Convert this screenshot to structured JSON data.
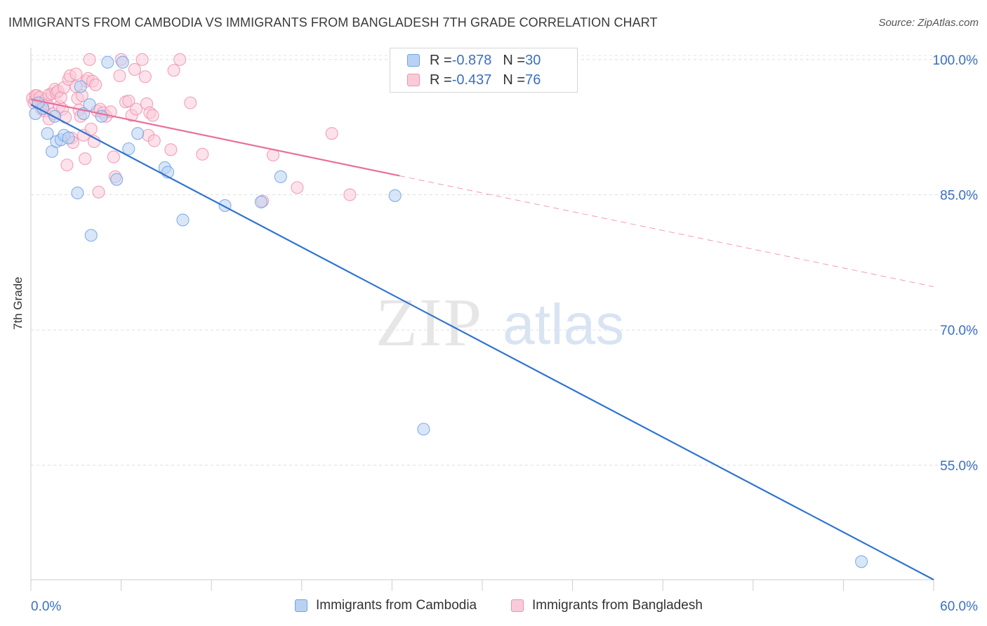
{
  "header": {
    "title": "IMMIGRANTS FROM CAMBODIA VS IMMIGRANTS FROM BANGLADESH 7TH GRADE CORRELATION CHART",
    "source": "Source: ZipAtlas.com"
  },
  "watermark": {
    "zip": "ZIP",
    "atlas": "atlas"
  },
  "legend": {
    "cambodia": {
      "r_label": "R = ",
      "r_value": "-0.878",
      "n_label": "N = ",
      "n_value": "30"
    },
    "bangladesh": {
      "r_label": "R = ",
      "r_value": "-0.437",
      "n_label": "N = ",
      "n_value": "76"
    }
  },
  "chart_data": {
    "type": "scatter",
    "title": "IMMIGRANTS FROM CAMBODIA VS IMMIGRANTS FROM BANGLADESH 7TH GRADE CORRELATION CHART",
    "xlabel": "",
    "ylabel": "7th Grade",
    "xlim": [
      0,
      60
    ],
    "ylim": [
      42.3,
      101
    ],
    "x_tick_labels": [
      "0.0%",
      "60.0%"
    ],
    "y_ticks": [
      55,
      70,
      85,
      100
    ],
    "y_tick_labels": [
      "55.0%",
      "70.0%",
      "85.0%",
      "100.0%"
    ],
    "grid": true,
    "legend_position": "top-center",
    "series": [
      {
        "name": "Immigrants from Cambodia",
        "color": "#6fa3e6",
        "fill": "#b9d2f3",
        "R": -0.878,
        "N": 30,
        "trend": {
          "x0": 0,
          "y0": 95.0,
          "x1": 60,
          "y1": 42.3,
          "dashed_from": null
        },
        "points": [
          [
            0.3,
            94.0
          ],
          [
            0.8,
            94.6
          ],
          [
            1.1,
            91.8
          ],
          [
            1.4,
            89.8
          ],
          [
            1.6,
            93.7
          ],
          [
            1.7,
            90.9
          ],
          [
            2.0,
            91.1
          ],
          [
            2.2,
            91.6
          ],
          [
            2.5,
            91.3
          ],
          [
            3.1,
            85.2
          ],
          [
            3.3,
            97.0
          ],
          [
            3.5,
            94.0
          ],
          [
            3.9,
            95.0
          ],
          [
            4.0,
            80.5
          ],
          [
            4.7,
            93.7
          ],
          [
            5.1,
            99.7
          ],
          [
            5.7,
            86.7
          ],
          [
            6.1,
            99.7
          ],
          [
            6.5,
            90.1
          ],
          [
            7.1,
            91.8
          ],
          [
            8.9,
            88.0
          ],
          [
            9.1,
            87.5
          ],
          [
            10.1,
            82.2
          ],
          [
            12.9,
            83.8
          ],
          [
            15.3,
            84.2
          ],
          [
            16.6,
            87.0
          ],
          [
            24.2,
            84.9
          ],
          [
            26.1,
            59.0
          ],
          [
            55.2,
            44.3
          ],
          [
            0.5,
            95.2
          ]
        ]
      },
      {
        "name": "Immigrants from Bangladesh",
        "color": "#f092ad",
        "fill": "#f9cbd8",
        "R": -0.437,
        "N": 76,
        "trend": {
          "x0": 0,
          "y0": 95.6,
          "x1": 60,
          "y1": 74.8,
          "dashed_from": 24.5
        },
        "points": [
          [
            0.1,
            95.7
          ],
          [
            0.2,
            95.2
          ],
          [
            0.3,
            96.0
          ],
          [
            0.3,
            95.5
          ],
          [
            0.4,
            96.0
          ],
          [
            0.5,
            95.1
          ],
          [
            0.6,
            95.8
          ],
          [
            0.7,
            94.5
          ],
          [
            0.8,
            94.9
          ],
          [
            0.9,
            94.3
          ],
          [
            1.0,
            95.6
          ],
          [
            1.1,
            95.0
          ],
          [
            1.2,
            93.4
          ],
          [
            1.2,
            96.1
          ],
          [
            1.4,
            96.2
          ],
          [
            1.5,
            94.0
          ],
          [
            1.6,
            96.7
          ],
          [
            1.7,
            96.3
          ],
          [
            1.8,
            96.5
          ],
          [
            1.9,
            94.8
          ],
          [
            2.0,
            95.8
          ],
          [
            2.1,
            94.5
          ],
          [
            2.2,
            96.9
          ],
          [
            2.3,
            93.6
          ],
          [
            2.4,
            88.3
          ],
          [
            2.5,
            97.8
          ],
          [
            2.6,
            98.2
          ],
          [
            2.7,
            91.3
          ],
          [
            2.8,
            90.8
          ],
          [
            3.0,
            97.0
          ],
          [
            3.1,
            95.7
          ],
          [
            3.2,
            94.4
          ],
          [
            3.3,
            93.7
          ],
          [
            3.4,
            96.0
          ],
          [
            3.5,
            91.6
          ],
          [
            3.6,
            89.0
          ],
          [
            3.7,
            97.6
          ],
          [
            3.8,
            97.9
          ],
          [
            3.9,
            100.0
          ],
          [
            4.0,
            92.3
          ],
          [
            4.1,
            97.6
          ],
          [
            4.2,
            90.9
          ],
          [
            4.3,
            97.2
          ],
          [
            4.4,
            94.3
          ],
          [
            4.5,
            85.3
          ],
          [
            4.6,
            94.5
          ],
          [
            4.8,
            94.1
          ],
          [
            5.0,
            93.7
          ],
          [
            5.3,
            94.2
          ],
          [
            5.5,
            89.2
          ],
          [
            5.6,
            87.0
          ],
          [
            5.9,
            98.2
          ],
          [
            6.0,
            100.0
          ],
          [
            6.3,
            95.3
          ],
          [
            6.5,
            95.4
          ],
          [
            6.7,
            93.8
          ],
          [
            6.9,
            98.9
          ],
          [
            7.0,
            94.5
          ],
          [
            7.4,
            100.0
          ],
          [
            7.6,
            98.1
          ],
          [
            7.7,
            95.1
          ],
          [
            7.8,
            91.6
          ],
          [
            7.9,
            94.1
          ],
          [
            8.2,
            91.0
          ],
          [
            9.3,
            90.0
          ],
          [
            9.5,
            98.8
          ],
          [
            9.9,
            100.0
          ],
          [
            10.6,
            95.2
          ],
          [
            11.4,
            89.5
          ],
          [
            15.4,
            84.3
          ],
          [
            16.1,
            89.4
          ],
          [
            17.7,
            85.8
          ],
          [
            20.0,
            91.8
          ],
          [
            21.2,
            85.0
          ],
          [
            3.0,
            98.4
          ],
          [
            8.1,
            93.8
          ]
        ]
      }
    ]
  },
  "bottom_legend": {
    "cambodia": "Immigrants from Cambodia",
    "bangladesh": "Immigrants from Bangladesh"
  }
}
